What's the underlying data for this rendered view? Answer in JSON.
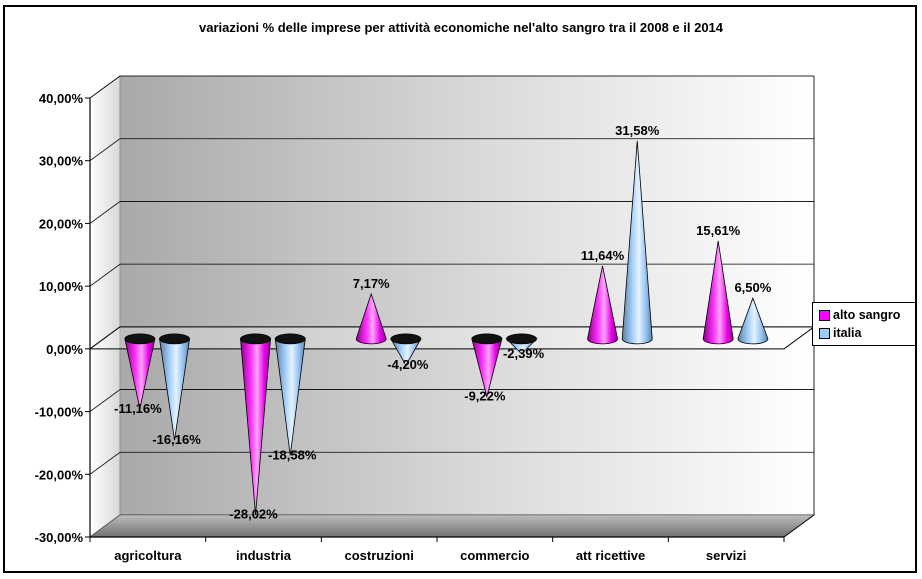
{
  "chart_data": {
    "type": "bar",
    "title": "variazioni % delle imprese per attività economiche nel'alto sangro tra il 2008 e il 2014",
    "categories": [
      "agricoltura",
      "industria",
      "costruzioni",
      "commercio",
      "att ricettive",
      "servizi"
    ],
    "series": [
      {
        "name": "alto sangro",
        "color": "#ff00ff",
        "values": [
          -11.16,
          -28.02,
          7.17,
          -9.22,
          11.64,
          15.61
        ],
        "labels": [
          "-11,16%",
          "-28,02%",
          "7,17%",
          "-9,22%",
          "11,64%",
          "15,61%"
        ]
      },
      {
        "name": "italia",
        "color": "#99ccff",
        "values": [
          -16.16,
          -18.58,
          -4.2,
          -2.39,
          31.58,
          6.5
        ],
        "labels": [
          "-16,16%",
          "-18,58%",
          "-4,20%",
          "-2,39%",
          "31,58%",
          "6,50%"
        ]
      }
    ],
    "ylim": [
      -30,
      40
    ],
    "yticks": [
      -30,
      -20,
      -10,
      0,
      10,
      20,
      30,
      40
    ],
    "ytick_labels": [
      "-30,00%",
      "-20,00%",
      "-10,00%",
      "0,00%",
      "10,00%",
      "20,00%",
      "30,00%",
      "40,00%"
    ],
    "grid": true,
    "legend": "right",
    "mark_shape": "cone-3d"
  }
}
